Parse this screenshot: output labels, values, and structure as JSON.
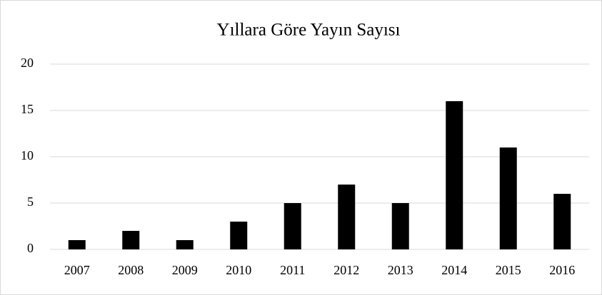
{
  "chart_data": {
    "type": "bar",
    "title": "Yıllara Göre Yayın Sayısı",
    "categories": [
      "2007",
      "2008",
      "2009",
      "2010",
      "2011",
      "2012",
      "2013",
      "2014",
      "2015",
      "2016"
    ],
    "values": [
      1,
      2,
      1,
      3,
      5,
      7,
      5,
      16,
      11,
      6
    ],
    "color": "#000000",
    "ylim": [
      0,
      20
    ],
    "yticks": [
      0,
      5,
      10,
      15,
      20
    ],
    "grid": true
  }
}
